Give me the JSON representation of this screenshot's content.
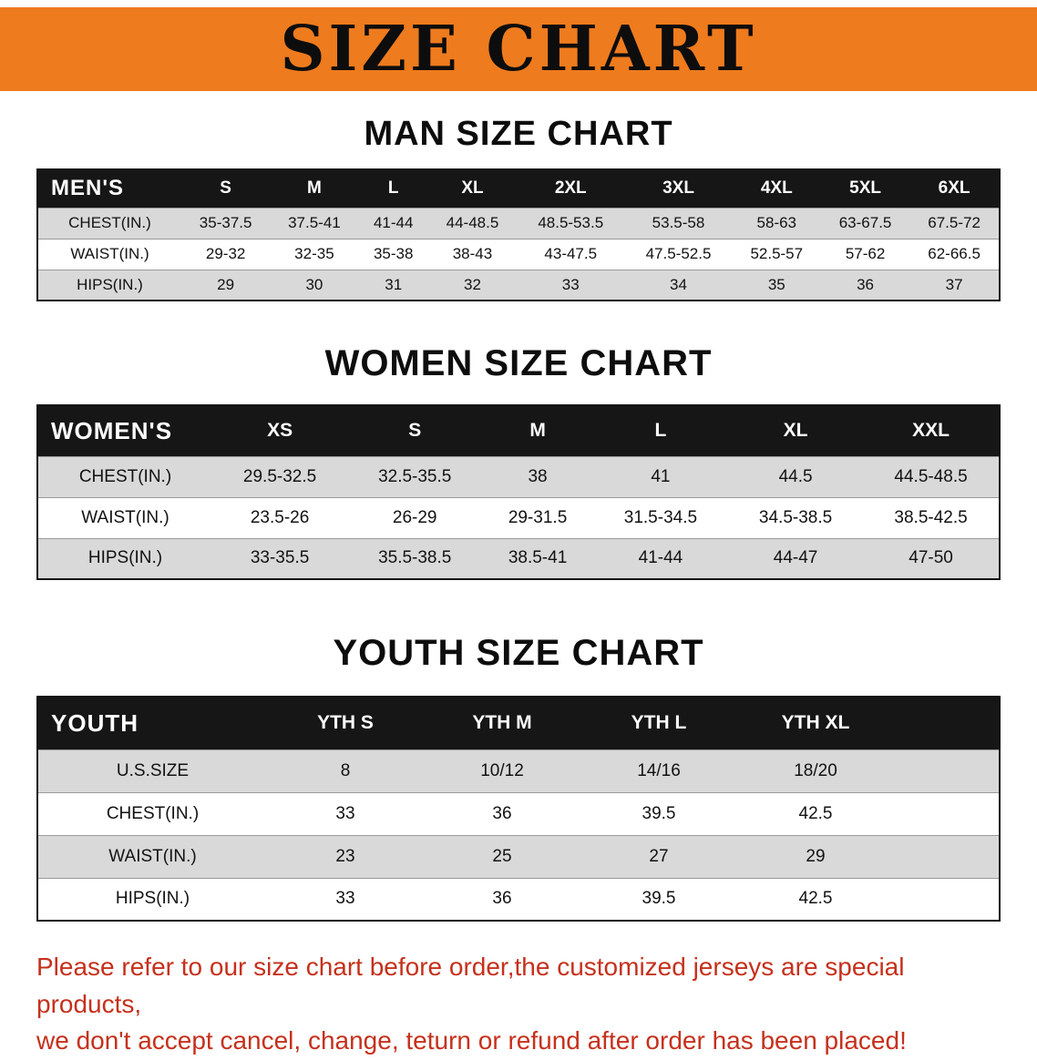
{
  "banner": {
    "title": "SIZE CHART"
  },
  "colors": {
    "banner_bg": "#ee7b1e",
    "table_header_bg": "#161616",
    "row_alt_bg": "#d9d9d9",
    "disclaimer_text": "#c5311d"
  },
  "men": {
    "heading": "MAN SIZE CHART",
    "header": [
      "MEN'S",
      "S",
      "M",
      "L",
      "XL",
      "2XL",
      "3XL",
      "4XL",
      "5XL",
      "6XL"
    ],
    "rows": [
      [
        "CHEST(IN.)",
        "35-37.5",
        "37.5-41",
        "41-44",
        "44-48.5",
        "48.5-53.5",
        "53.5-58",
        "58-63",
        "63-67.5",
        "67.5-72"
      ],
      [
        "WAIST(IN.)",
        "29-32",
        "32-35",
        "35-38",
        "38-43",
        "43-47.5",
        "47.5-52.5",
        "52.5-57",
        "57-62",
        "62-66.5"
      ],
      [
        "HIPS(IN.)",
        "29",
        "30",
        "31",
        "32",
        "33",
        "34",
        "35",
        "36",
        "37"
      ]
    ]
  },
  "women": {
    "heading": "WOMEN SIZE CHART",
    "header": [
      "WOMEN'S",
      "XS",
      "S",
      "M",
      "L",
      "XL",
      "XXL"
    ],
    "rows": [
      [
        "CHEST(IN.)",
        "29.5-32.5",
        "32.5-35.5",
        "38",
        "41",
        "44.5",
        "44.5-48.5"
      ],
      [
        "WAIST(IN.)",
        "23.5-26",
        "26-29",
        "29-31.5",
        "31.5-34.5",
        "34.5-38.5",
        "38.5-42.5"
      ],
      [
        "HIPS(IN.)",
        "33-35.5",
        "35.5-38.5",
        "38.5-41",
        "41-44",
        "44-47",
        "47-50"
      ]
    ]
  },
  "youth": {
    "heading": "YOUTH SIZE CHART",
    "header": [
      "YOUTH",
      "YTH S",
      "YTH M",
      "YTH L",
      "YTH XL"
    ],
    "rows": [
      [
        "U.S.SIZE",
        "8",
        "10/12",
        "14/16",
        "18/20"
      ],
      [
        "CHEST(IN.)",
        "33",
        "36",
        "39.5",
        "42.5"
      ],
      [
        "WAIST(IN.)",
        "23",
        "25",
        "27",
        "29"
      ],
      [
        "HIPS(IN.)",
        "33",
        "36",
        "39.5",
        "42.5"
      ]
    ]
  },
  "disclaimer": {
    "line1": "Please refer to our size chart before order,the customized jerseys are special products,",
    "line2": "we don't accept cancel, change, teturn or refund after order has been placed!"
  }
}
